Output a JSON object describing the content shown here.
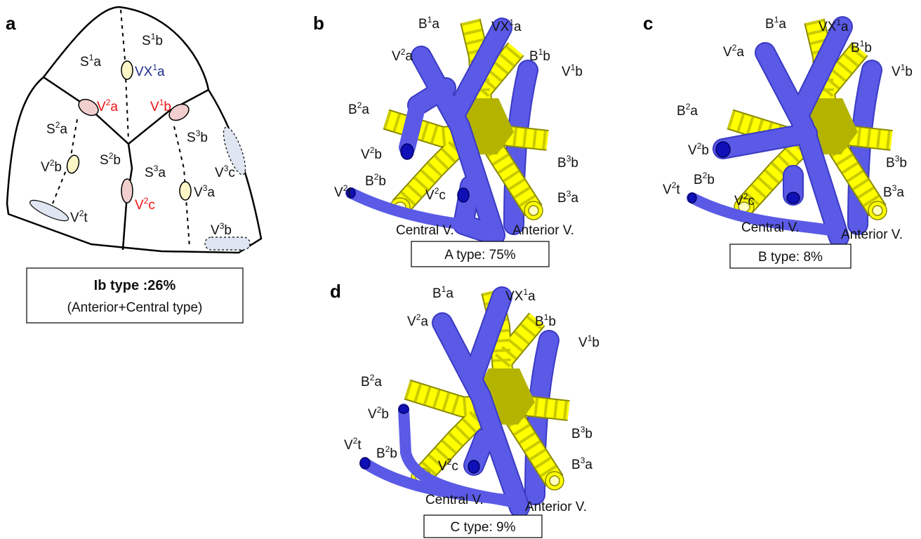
{
  "colors": {
    "vein": "#5a5ae6",
    "vein_dark": "#2222bb",
    "bronchus": "#ffff00",
    "bronchus_stripe": "#c8c800",
    "bronchus_core": "#b4b400",
    "red_label": "#ee1111",
    "blue_label": "#1f2f8a",
    "pink_marker": "#f2cfcf",
    "yellow_marker": "#fdf7c8",
    "lightblue_marker": "#dfe6f2"
  },
  "panel_a": {
    "letter": "a",
    "segments": {
      "s1a": {
        "main": "S",
        "sup": "1",
        "suf": "a"
      },
      "s1b": {
        "main": "S",
        "sup": "1",
        "suf": "b"
      },
      "s2a": {
        "main": "S",
        "sup": "2",
        "suf": "a"
      },
      "s2b": {
        "main": "S",
        "sup": "2",
        "suf": "b"
      },
      "s3a": {
        "main": "S",
        "sup": "3",
        "suf": "a"
      },
      "s3b": {
        "main": "S",
        "sup": "3",
        "suf": "b"
      }
    },
    "veins": {
      "vx1a": {
        "main": "VX",
        "sup": "1",
        "suf": "a"
      },
      "v2a": {
        "main": "V",
        "sup": "2",
        "suf": "a"
      },
      "v1b": {
        "main": "V",
        "sup": "1",
        "suf": "b"
      },
      "v2b": {
        "main": "V",
        "sup": "2",
        "suf": "b"
      },
      "v2c": {
        "main": "V",
        "sup": "2",
        "suf": "c"
      },
      "v3a": {
        "main": "V",
        "sup": "3",
        "suf": "a"
      },
      "v3c": {
        "main": "V",
        "sup": "3",
        "suf": "c"
      },
      "v2t": {
        "main": "V",
        "sup": "2",
        "suf": "t"
      },
      "v3b": {
        "main": "V",
        "sup": "3",
        "suf": "b"
      }
    },
    "caption_title": "Ib type :26%",
    "caption_sub": "(Anterior+Central type)"
  },
  "labels": {
    "b1a": {
      "main": "B",
      "sup": "1",
      "suf": "a"
    },
    "vx1a": {
      "main": "VX",
      "sup": "1",
      "suf": "a"
    },
    "v2a": {
      "main": "V",
      "sup": "2",
      "suf": "a"
    },
    "b1b": {
      "main": "B",
      "sup": "1",
      "suf": "b"
    },
    "v1b": {
      "main": "V",
      "sup": "1",
      "suf": "b"
    },
    "b2a": {
      "main": "B",
      "sup": "2",
      "suf": "a"
    },
    "v2b": {
      "main": "V",
      "sup": "2",
      "suf": "b"
    },
    "b3b": {
      "main": "B",
      "sup": "3",
      "suf": "b"
    },
    "b2b": {
      "main": "B",
      "sup": "2",
      "suf": "b"
    },
    "v2t": {
      "main": "V",
      "sup": "2",
      "suf": "t"
    },
    "v2c": {
      "main": "V",
      "sup": "2",
      "suf": "c"
    },
    "b3a": {
      "main": "B",
      "sup": "3",
      "suf": "a"
    },
    "central": "Central V.",
    "anterior": "Anterior V."
  },
  "panel_b": {
    "letter": "b",
    "caption": "A type: 75%"
  },
  "panel_c": {
    "letter": "c",
    "caption": "B type: 8%"
  },
  "panel_d": {
    "letter": "d",
    "caption": "C type: 9%"
  }
}
